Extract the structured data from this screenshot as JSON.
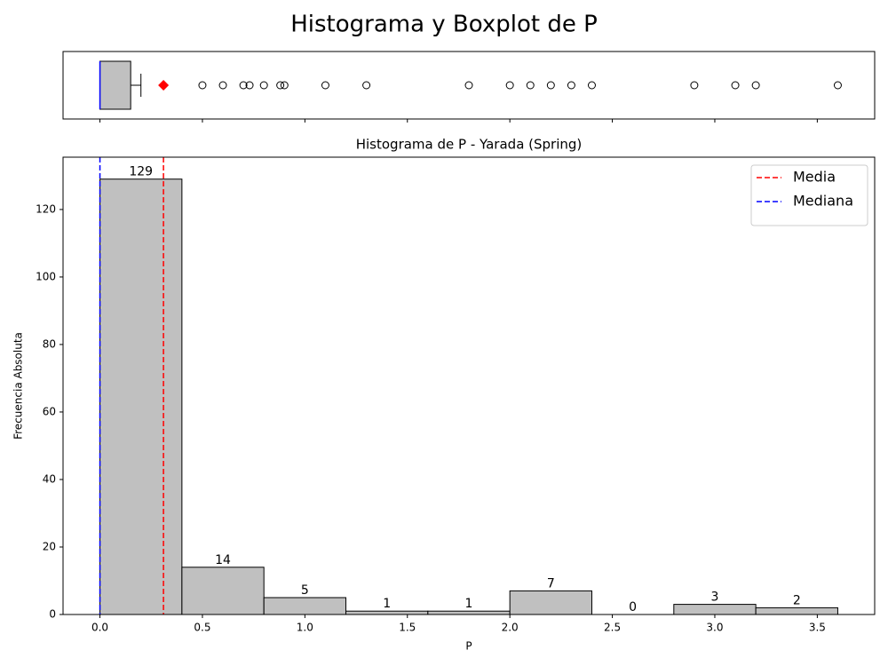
{
  "title": "Histograma y Boxplot de P",
  "chart_data": [
    {
      "type": "box",
      "color": "#c0c0c0",
      "median_color": "#0000ff",
      "mean_color": "#ff0000",
      "whisker_low": 0,
      "q1": 0,
      "median": 0,
      "q3": 0.15,
      "whisker_high": 0.2,
      "mean": 0.31,
      "outliers": [
        0.5,
        0.6,
        0.7,
        0.73,
        0.8,
        0.88,
        0.9,
        1.1,
        1.3,
        1.8,
        2.0,
        2.1,
        2.2,
        2.3,
        2.4,
        2.9,
        3.1,
        3.2,
        3.6
      ],
      "xlim": [
        -0.18,
        3.78
      ],
      "xticks": [
        0,
        0.5,
        1,
        1.5,
        2,
        2.5,
        3,
        3.5
      ]
    },
    {
      "type": "histogram",
      "title": "Histograma de P - Yarada (Spring)",
      "xlabel": "P",
      "ylabel": "Frecuencia Absoluta",
      "bins": [
        0,
        0.4,
        0.8,
        1.2,
        1.6,
        2.0,
        2.4,
        2.8,
        3.2,
        3.6
      ],
      "values": [
        129,
        14,
        5,
        1,
        1,
        7,
        0,
        3,
        2
      ],
      "color": "#c0c0c0",
      "xlim": [
        -0.18,
        3.78
      ],
      "ylim": [
        0,
        135.5
      ],
      "xticks": [
        {
          "value": 0,
          "label": "0.0"
        },
        0.5,
        {
          "value": 1,
          "label": "1.0"
        },
        1.5,
        {
          "value": 2,
          "label": "2.0"
        },
        2.5,
        {
          "value": 3,
          "label": "3.0"
        },
        3.5
      ],
      "yticks": [
        0,
        20,
        40,
        60,
        80,
        100,
        120
      ],
      "lines": [
        {
          "name": "Media",
          "value": 0.31,
          "color": "#ff0000"
        },
        {
          "name": "Mediana",
          "value": 0,
          "color": "#0000ff"
        }
      ],
      "legend": "upper right"
    }
  ]
}
